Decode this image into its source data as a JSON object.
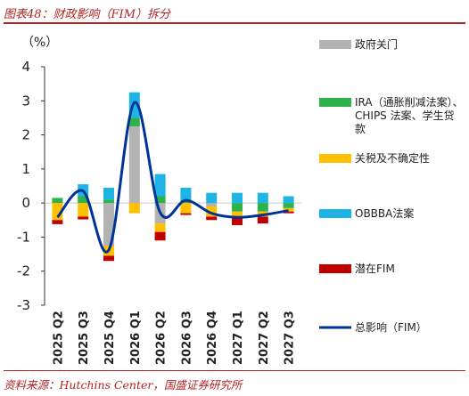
{
  "header": {
    "title": "图表48：财政影响（FIM）拆分"
  },
  "footer": {
    "source": "资料来源：Hutchins Center，国盛证券研究所"
  },
  "colors": {
    "政府关门": "#b3b3b3",
    "IRA": "#2db34a",
    "关税": "#ffc000",
    "OBBBA": "#1fb4e6",
    "潜在FIM": "#c00000",
    "总影响": "#003399"
  },
  "chart_data": {
    "type": "bar",
    "stacked": true,
    "unit_label": "（%）",
    "ylim": [
      -3,
      4
    ],
    "yticks": [
      -3,
      -2,
      -1,
      0,
      1,
      2,
      3,
      4
    ],
    "categories": [
      "2025 Q2",
      "2025 Q3",
      "2025 Q4",
      "2026 Q1",
      "2026 Q2",
      "2026 Q3",
      "2026 Q4",
      "2027 Q1",
      "2027 Q2",
      "2027 Q3"
    ],
    "series": [
      {
        "name": "政府关门",
        "type": "bar",
        "color": "#b3b3b3",
        "values": [
          0,
          0,
          -1.25,
          2.25,
          -0.6,
          0,
          -0.1,
          0,
          0,
          0
        ]
      },
      {
        "name": "IRA（通胀削减法案）、CHIPS 法案、学生贷款",
        "type": "bar",
        "color": "#2db34a",
        "values": [
          0.15,
          0.2,
          0.1,
          0.25,
          0.2,
          0.1,
          0,
          -0.25,
          -0.25,
          -0.15
        ]
      },
      {
        "name": "关税及不确定性",
        "type": "bar",
        "color": "#ffc000",
        "values": [
          -0.5,
          -0.4,
          -0.3,
          -0.3,
          -0.25,
          -0.3,
          -0.3,
          -0.2,
          -0.15,
          -0.1
        ]
      },
      {
        "name": "OBBBA法案",
        "type": "bar",
        "color": "#1fb4e6",
        "values": [
          0,
          0.35,
          0.35,
          0.75,
          0.65,
          0.35,
          0.3,
          0.3,
          0.3,
          0.2
        ]
      },
      {
        "name": "潜在FIM",
        "type": "bar",
        "color": "#c00000",
        "values": [
          -0.12,
          -0.08,
          -0.15,
          0,
          -0.25,
          -0.05,
          -0.1,
          -0.2,
          -0.2,
          -0.05
        ]
      },
      {
        "name": "总影响（FIM）",
        "type": "line",
        "color": "#003399",
        "values": [
          -0.42,
          0.35,
          -1.38,
          2.95,
          -0.28,
          0.08,
          -0.3,
          -0.42,
          -0.35,
          -0.22
        ]
      }
    ],
    "legend": [
      {
        "label": "政府关门",
        "series": 0
      },
      {
        "label": "IRA（通胀削减法案）、CHIPS 法案、学生贷款",
        "series": 1
      },
      {
        "label": "关税及不确定性",
        "series": 2
      },
      {
        "label": "OBBBA法案",
        "series": 3
      },
      {
        "label": "潜在FIM",
        "series": 4
      },
      {
        "label": "总影响（FIM）",
        "series": 5
      }
    ]
  }
}
